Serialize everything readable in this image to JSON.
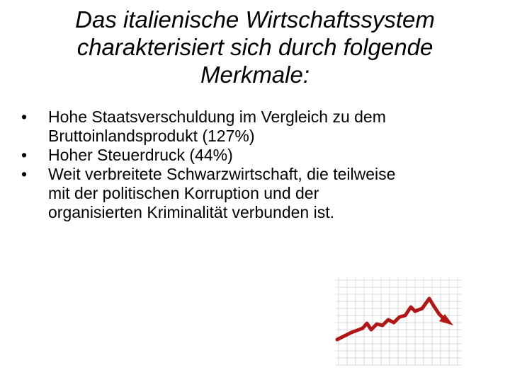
{
  "slide": {
    "title_lines": [
      "Das italienische Wirtschaftssystem",
      "charakterisiert sich durch folgende",
      "Merkmale:"
    ],
    "bullet_symbol": "•",
    "bullets": [
      {
        "lines": [
          "Hohe Staatsverschuldung im Vergleich zu dem",
          "Bruttoinlandsprodukt (127%)"
        ]
      },
      {
        "lines": [
          "Hoher Steuerdruck (44%)"
        ]
      },
      {
        "lines": [
          "Weit verbreitete Schwarzwirtschaft, die teilweise",
          "mit der politischen Korruption und der",
          "organisierten Kriminalität verbunden ist."
        ]
      }
    ]
  },
  "illustration": {
    "icon": "declining-line-chart-icon",
    "line_color": "#b01818",
    "grid_color": "#d8d8d8"
  }
}
